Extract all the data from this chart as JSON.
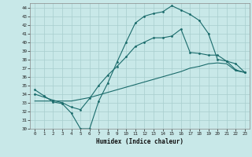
{
  "xlabel": "Humidex (Indice chaleur)",
  "bg_color": "#c8e8e8",
  "line_color": "#1a6b6b",
  "grid_color": "#a8cece",
  "xlim": [
    -0.5,
    23.5
  ],
  "ylim": [
    30,
    44.5
  ],
  "xticks": [
    0,
    1,
    2,
    3,
    4,
    5,
    6,
    7,
    8,
    9,
    10,
    11,
    12,
    13,
    14,
    15,
    16,
    17,
    18,
    19,
    20,
    21,
    22,
    23
  ],
  "yticks": [
    30,
    31,
    32,
    33,
    34,
    35,
    36,
    37,
    38,
    39,
    40,
    41,
    42,
    43,
    44
  ],
  "line1_x": [
    0,
    1,
    2,
    3,
    4,
    5,
    6,
    7,
    8,
    9,
    10,
    11,
    12,
    13,
    14,
    15,
    16,
    17,
    18,
    19,
    20,
    21,
    22,
    23
  ],
  "line1_y": [
    34.5,
    33.8,
    33.1,
    32.9,
    31.8,
    30.0,
    30.0,
    33.2,
    35.3,
    37.7,
    40.0,
    42.2,
    43.0,
    43.3,
    43.5,
    44.2,
    43.7,
    43.2,
    42.5,
    41.0,
    38.0,
    37.8,
    37.5,
    36.5
  ],
  "line2_x": [
    0,
    2,
    3,
    4,
    5,
    6,
    7,
    8,
    9,
    10,
    11,
    12,
    13,
    14,
    15,
    16,
    17,
    18,
    19,
    20,
    21,
    22,
    23
  ],
  "line2_y": [
    34.0,
    33.3,
    33.0,
    32.5,
    32.2,
    33.5,
    35.0,
    36.2,
    37.2,
    38.3,
    39.5,
    40.0,
    40.5,
    40.5,
    40.7,
    41.5,
    38.8,
    38.7,
    38.5,
    38.5,
    37.8,
    36.8,
    36.5
  ],
  "line3_x": [
    0,
    1,
    2,
    3,
    4,
    5,
    6,
    7,
    8,
    9,
    10,
    11,
    12,
    13,
    14,
    15,
    16,
    17,
    18,
    19,
    20,
    21,
    22,
    23
  ],
  "line3_y": [
    33.2,
    33.2,
    33.2,
    33.2,
    33.2,
    33.4,
    33.6,
    33.9,
    34.2,
    34.5,
    34.8,
    35.1,
    35.4,
    35.7,
    36.0,
    36.3,
    36.6,
    37.0,
    37.2,
    37.5,
    37.6,
    37.5,
    36.7,
    36.5
  ]
}
